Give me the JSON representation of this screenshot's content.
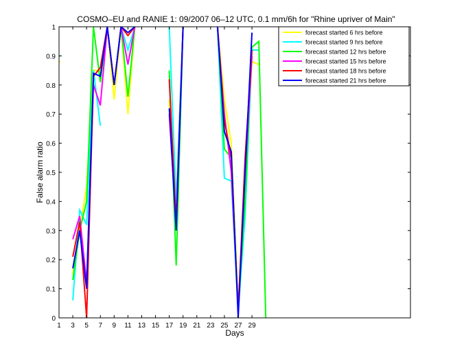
{
  "chart_data": {
    "type": "line",
    "title": "COSMO–EU and RANIE 1: 09/2007 06–12 UTC, 0.1 mm/6h for \"Rhine upriver of Main\"",
    "xlabel": "Days",
    "ylabel": "False alarm ratio",
    "xlim": [
      1,
      52
    ],
    "ylim": [
      0,
      1
    ],
    "x_ticks": [
      1,
      3,
      5,
      7,
      9,
      11,
      13,
      15,
      17,
      19,
      21,
      23,
      25,
      27,
      29
    ],
    "y_ticks": [
      0,
      0.1,
      0.2,
      0.3,
      0.4,
      0.5,
      0.6,
      0.7,
      0.8,
      0.9,
      1
    ],
    "y_tick_labels": [
      "0",
      "0.1",
      "0.2",
      "0.3",
      "0.4",
      "0.5",
      "0.6",
      "0.7",
      "0.8",
      "0.9",
      "1"
    ],
    "grid": false,
    "legend_position": "top-right",
    "series": [
      {
        "name": "forecast started 6 hrs before",
        "color": "#ffff00",
        "segments": [
          [
            [
              1,
              0.88
            ]
          ],
          [
            [
              3,
              0.15
            ],
            [
              4,
              0.3
            ],
            [
              5,
              0.45
            ],
            [
              6,
              0.85
            ],
            [
              7,
              0.85
            ],
            [
              8,
              1.0
            ],
            [
              9,
              0.75
            ],
            [
              10,
              1.0
            ],
            [
              11,
              0.7
            ],
            [
              12,
              1.0
            ]
          ],
          [
            [
              17,
              0.75
            ],
            [
              18,
              0.35
            ],
            [
              19,
              1.0
            ]
          ],
          [
            [
              24,
              1.0
            ],
            [
              25,
              0.75
            ],
            [
              26,
              0.6
            ],
            [
              27,
              0.05
            ],
            [
              28,
              0.45
            ],
            [
              29,
              0.88
            ],
            [
              30,
              0.87
            ]
          ]
        ]
      },
      {
        "name": "forecast started 9 hrs before",
        "color": "#00ffff",
        "segments": [
          [
            [
              1,
              0.9
            ]
          ],
          [
            [
              3,
              0.06
            ],
            [
              4,
              0.37
            ],
            [
              5,
              0.32
            ],
            [
              6,
              0.85
            ],
            [
              7,
              0.66
            ]
          ],
          [
            [
              8,
              1.0
            ],
            [
              9,
              0.8
            ],
            [
              10,
              1.0
            ],
            [
              11,
              0.92
            ],
            [
              12,
              1.0
            ]
          ],
          [
            [
              17,
              1.0
            ],
            [
              18,
              0.4
            ],
            [
              19,
              1.0
            ]
          ],
          [
            [
              24,
              1.0
            ],
            [
              25,
              0.48
            ],
            [
              26,
              0.47
            ],
            [
              27,
              0.02
            ],
            [
              28,
              0.35
            ],
            [
              29,
              0.92
            ],
            [
              30,
              0.92
            ]
          ]
        ]
      },
      {
        "name": "forecast started 12 hrs before",
        "color": "#00ff00",
        "segments": [
          [
            [
              3,
              0.13
            ],
            [
              4,
              0.3
            ],
            [
              5,
              0.4
            ],
            [
              6,
              1.0
            ],
            [
              7,
              0.81
            ],
            [
              8,
              1.0
            ],
            [
              9,
              0.8
            ],
            [
              10,
              1.0
            ],
            [
              11,
              0.76
            ],
            [
              12,
              1.0
            ]
          ],
          [
            [
              17,
              0.85
            ],
            [
              18,
              0.18
            ],
            [
              19,
              1.0
            ]
          ],
          [
            [
              24,
              1.0
            ],
            [
              25,
              0.58
            ],
            [
              26,
              0.55
            ],
            [
              27,
              0.03
            ],
            [
              28,
              0.4
            ],
            [
              29,
              0.93
            ],
            [
              30,
              0.95
            ],
            [
              31,
              0.0
            ]
          ]
        ]
      },
      {
        "name": "forecast started 15 hrs before",
        "color": "#ff00ff",
        "segments": [
          [
            [
              3,
              0.27
            ],
            [
              4,
              0.35
            ],
            [
              5,
              0.12
            ],
            [
              6,
              0.8
            ],
            [
              7,
              0.73
            ],
            [
              8,
              1.0
            ],
            [
              9,
              0.8
            ],
            [
              10,
              1.0
            ],
            [
              11,
              0.87
            ],
            [
              12,
              1.0
            ]
          ],
          [
            [
              17,
              0.7
            ],
            [
              18,
              0.32
            ],
            [
              19,
              1.0
            ]
          ],
          [
            [
              24,
              1.0
            ],
            [
              25,
              0.7
            ],
            [
              26,
              0.5
            ],
            [
              27,
              0.03
            ],
            [
              28,
              0.5
            ],
            [
              29,
              0.9
            ]
          ]
        ]
      },
      {
        "name": "forecast started 18 hrs before",
        "color": "#ff0000",
        "segments": [
          [
            [
              3,
              0.21
            ],
            [
              4,
              0.33
            ],
            [
              5,
              0.0
            ],
            [
              6,
              0.83
            ],
            [
              7,
              0.86
            ],
            [
              8,
              1.0
            ],
            [
              9,
              0.8
            ],
            [
              10,
              1.0
            ],
            [
              11,
              0.97
            ],
            [
              12,
              1.0
            ]
          ],
          [
            [
              17,
              0.82
            ],
            [
              18,
              0.33
            ],
            [
              19,
              1.0
            ]
          ],
          [
            [
              24,
              1.0
            ],
            [
              25,
              0.68
            ],
            [
              26,
              0.55
            ],
            [
              27,
              0.02
            ],
            [
              28,
              0.55
            ],
            [
              29,
              0.92
            ]
          ]
        ]
      },
      {
        "name": "forecast started 21 hrs before",
        "color": "#0000ff",
        "segments": [
          [
            [
              3,
              0.17
            ],
            [
              4,
              0.3
            ],
            [
              5,
              0.1
            ],
            [
              6,
              0.84
            ],
            [
              7,
              0.83
            ],
            [
              8,
              1.0
            ],
            [
              9,
              0.8
            ],
            [
              10,
              1.0
            ],
            [
              11,
              0.98
            ],
            [
              12,
              1.0
            ]
          ],
          [
            [
              17,
              0.72
            ],
            [
              18,
              0.3
            ],
            [
              19,
              1.0
            ]
          ],
          [
            [
              24,
              1.0
            ],
            [
              25,
              0.64
            ],
            [
              26,
              0.57
            ],
            [
              27,
              0.0
            ],
            [
              28,
              0.5
            ],
            [
              29,
              0.98
            ]
          ]
        ]
      }
    ]
  }
}
